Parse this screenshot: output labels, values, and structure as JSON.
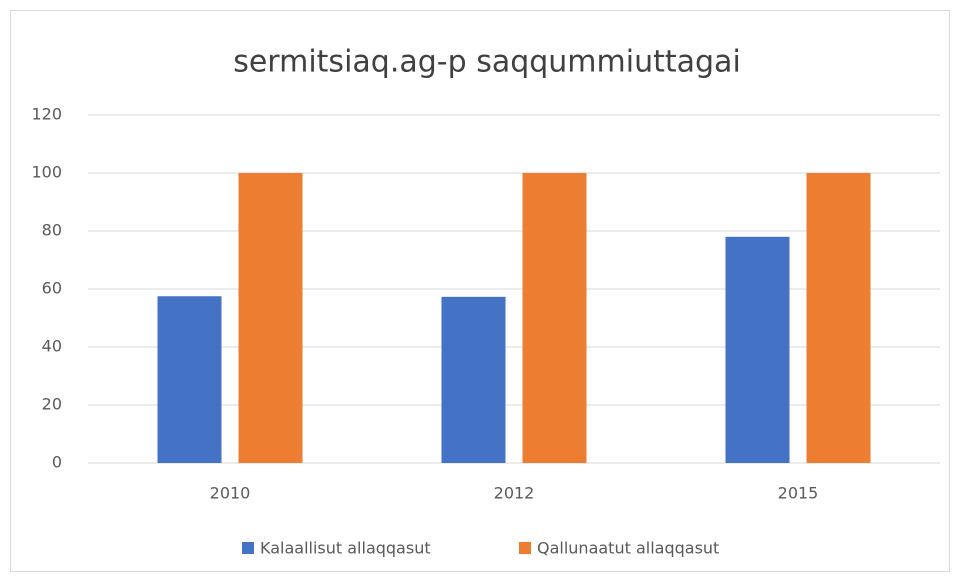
{
  "chart_data": {
    "type": "bar",
    "title": "sermitsiaq.ag-p saqqummiuttagai",
    "categories": [
      "2010",
      "2012",
      "2015"
    ],
    "series": [
      {
        "name": "Kalaallisut allaqqasut",
        "color": "#4472c4",
        "values": [
          57.5,
          57.3,
          78
        ]
      },
      {
        "name": "Qallunaatut allaqqasut",
        "color": "#ed7d31",
        "values": [
          100,
          100,
          100
        ]
      }
    ],
    "ylim": [
      0,
      120
    ],
    "yticks": [
      0,
      20,
      40,
      60,
      80,
      100,
      120
    ],
    "grid": true,
    "legend": "bottom"
  }
}
